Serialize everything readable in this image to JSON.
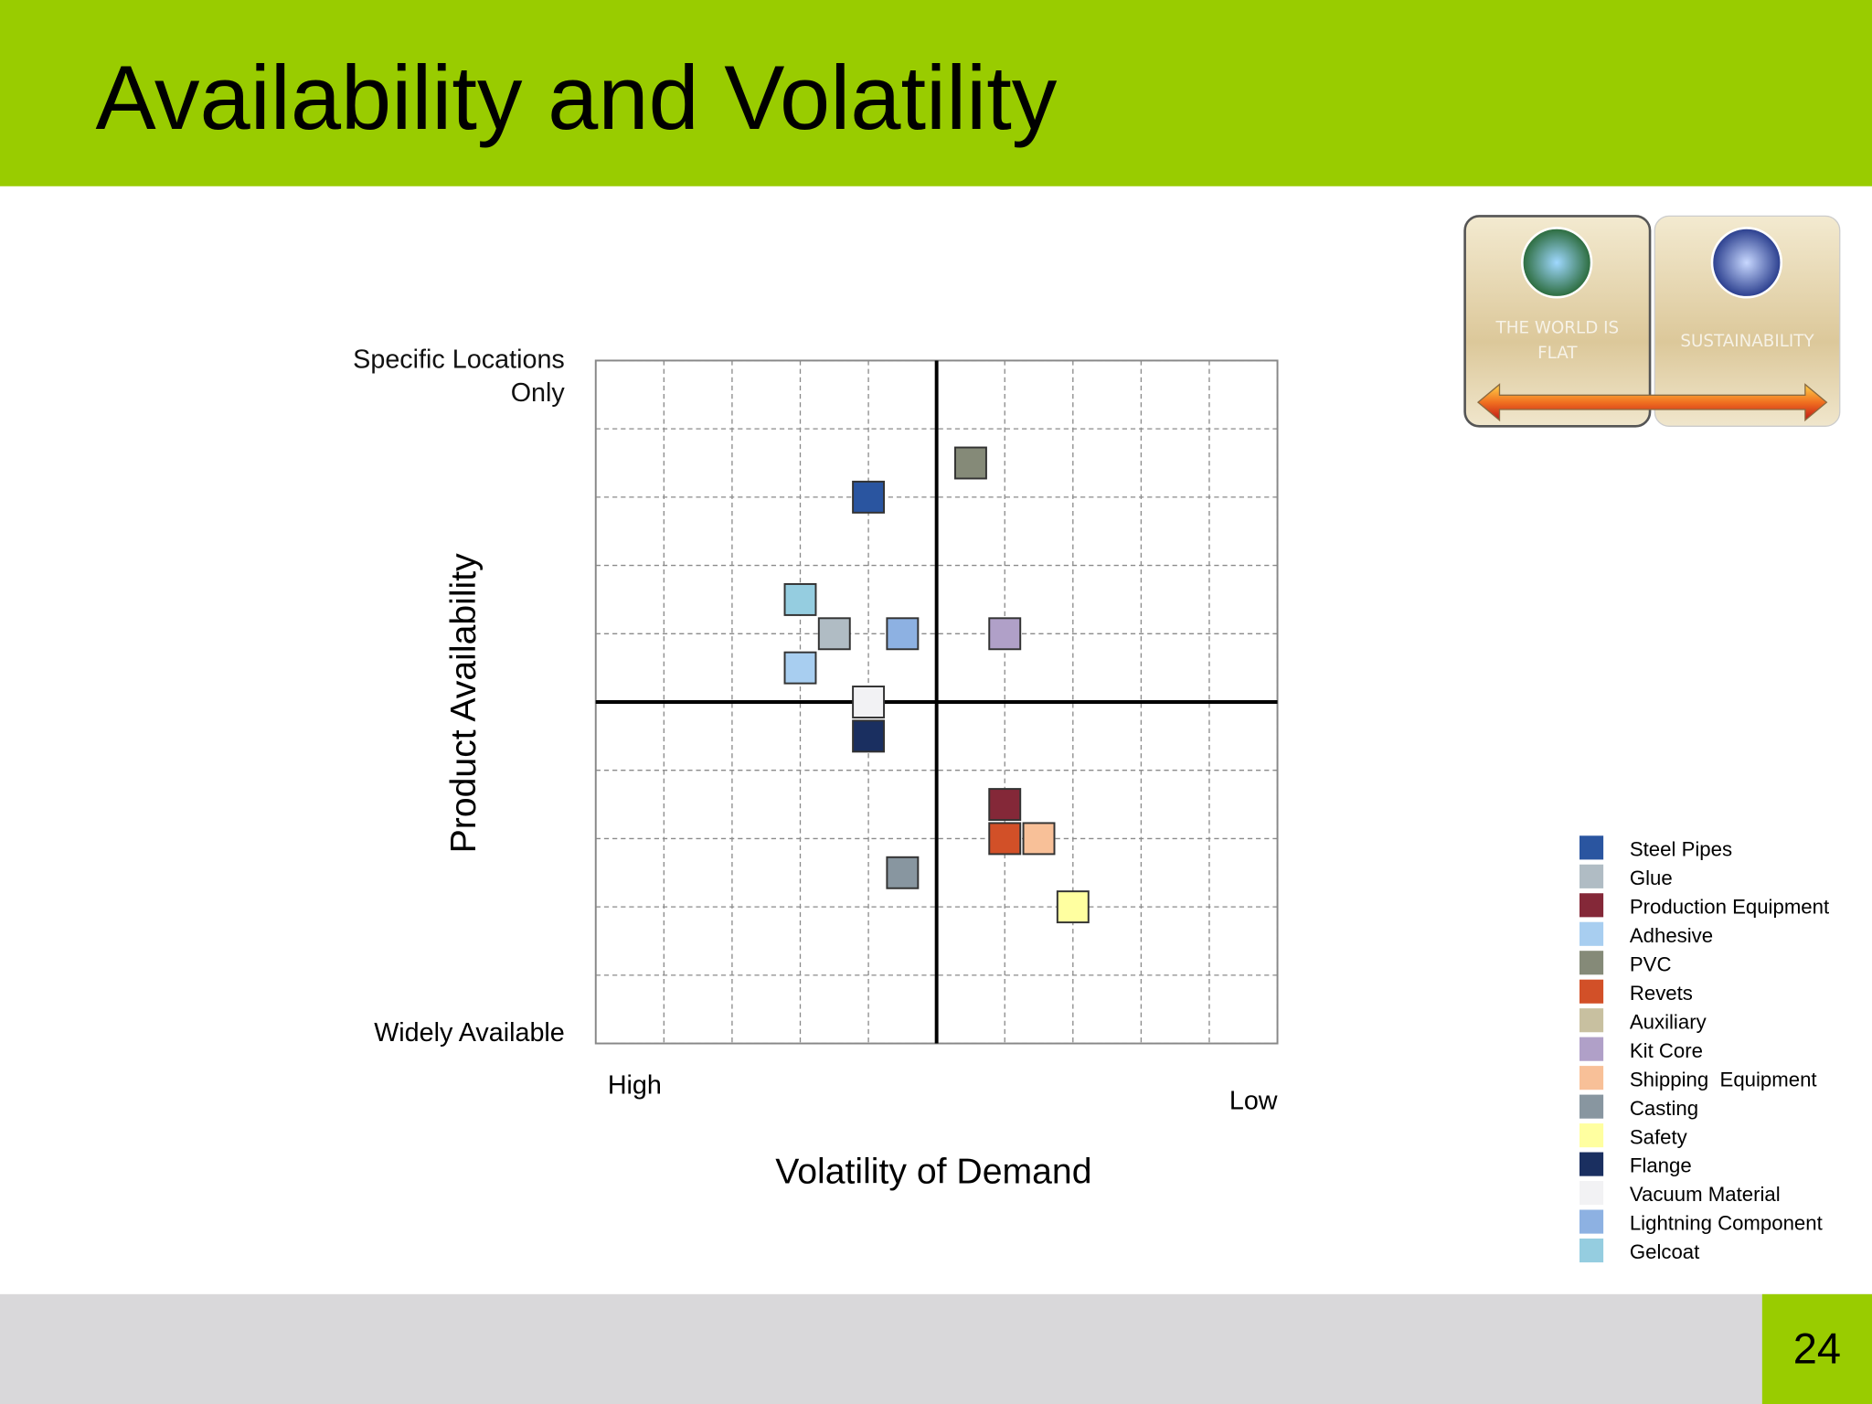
{
  "header": {
    "title": "Availability and Volatility"
  },
  "nav": {
    "items": [
      "THE WORLD IS FLAT",
      "SUSTAINABILITY"
    ]
  },
  "page_number": "24",
  "chart_data": {
    "type": "scatter",
    "xlabel": "Volatility of Demand",
    "ylabel": "Product Availability",
    "annotations": {
      "y_top": "Specific Locations Only",
      "y_bottom": "Widely Available",
      "x_left": "High",
      "x_right": "Low"
    },
    "xlim": [
      0,
      10
    ],
    "ylim": [
      0,
      10
    ],
    "xticks": [
      0,
      1,
      2,
      3,
      4,
      5,
      6,
      7,
      8,
      9,
      10
    ],
    "yticks": [
      0,
      1,
      2,
      3,
      4,
      5,
      6,
      7,
      8,
      9,
      10
    ],
    "grid": true,
    "series": [
      {
        "name": "Steel Pipes",
        "color": "#2a55a0",
        "x": [
          4
        ],
        "y": [
          8
        ]
      },
      {
        "name": "Glue",
        "color": "#b0bcc4",
        "x": [
          3.5
        ],
        "y": [
          6
        ]
      },
      {
        "name": "Production Equipment",
        "color": "#842838",
        "x": [
          6
        ],
        "y": [
          3.5
        ]
      },
      {
        "name": "Adhesive",
        "color": "#a8cef0",
        "x": [
          3
        ],
        "y": [
          5.5
        ]
      },
      {
        "name": "PVC",
        "color": "#858a78",
        "x": [
          5.5
        ],
        "y": [
          8.5
        ]
      },
      {
        "name": "Revets",
        "color": "#d25028",
        "x": [
          6
        ],
        "y": [
          3
        ]
      },
      {
        "name": "Auxiliary",
        "color": "#c8c0a0",
        "x": [
          null
        ],
        "y": [
          null
        ]
      },
      {
        "name": "Kit Core",
        "color": "#b0a0c8",
        "x": [
          6
        ],
        "y": [
          6
        ]
      },
      {
        "name": "Shipping  Equipment",
        "color": "#f8c098",
        "x": [
          6.5
        ],
        "y": [
          3
        ]
      },
      {
        "name": "Casting",
        "color": "#8896a0",
        "x": [
          4.5
        ],
        "y": [
          2.5
        ]
      },
      {
        "name": "Safety",
        "color": "#ffffa0",
        "x": [
          7
        ],
        "y": [
          2
        ]
      },
      {
        "name": "Flange",
        "color": "#1a2f60",
        "x": [
          4
        ],
        "y": [
          4.5
        ]
      },
      {
        "name": "Vacuum Material",
        "color": "#f2f2f4",
        "x": [
          4
        ],
        "y": [
          5
        ]
      },
      {
        "name": "Lightning Component",
        "color": "#8db1e2",
        "x": [
          4.5
        ],
        "y": [
          6
        ]
      },
      {
        "name": "Gelcoat",
        "color": "#95cde0",
        "x": [
          3
        ],
        "y": [
          6.5
        ]
      }
    ]
  }
}
